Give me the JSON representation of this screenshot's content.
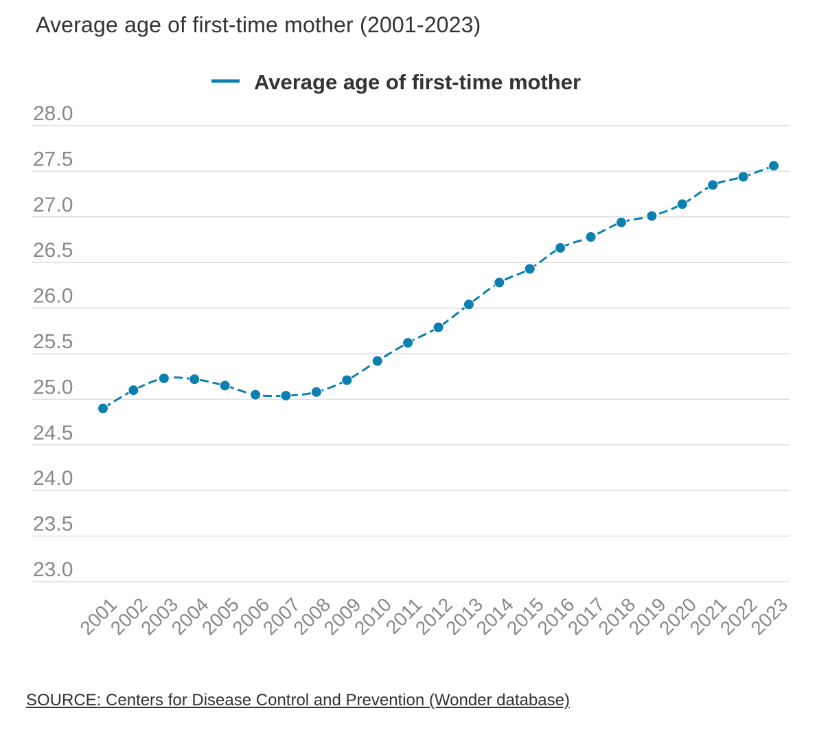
{
  "title": "Average age of first-time mother (2001-2023)",
  "source_text": "SOURCE: Centers for Disease Control and Prevention (Wonder database)",
  "colors": {
    "series": "#0a7fb0",
    "grid": "#dddddd",
    "tick_label": "#888888",
    "title": "#333333",
    "legend_text": "#333333"
  },
  "chart_data": {
    "type": "line",
    "title": "Average age of first-time mother (2001-2023)",
    "xlabel": "",
    "ylabel": "",
    "x": [
      "2001",
      "2002",
      "2003",
      "2004",
      "2005",
      "2006",
      "2007",
      "2008",
      "2009",
      "2010",
      "2011",
      "2012",
      "2013",
      "2014",
      "2015",
      "2016",
      "2017",
      "2018",
      "2019",
      "2020",
      "2021",
      "2022",
      "2023"
    ],
    "series": [
      {
        "name": "Average age of first-time mother",
        "values": [
          24.9,
          25.1,
          25.23,
          25.22,
          25.15,
          25.05,
          25.04,
          25.08,
          25.21,
          25.42,
          25.62,
          25.79,
          26.04,
          26.28,
          26.43,
          26.66,
          26.78,
          26.94,
          27.01,
          27.14,
          27.35,
          27.44,
          27.56
        ]
      }
    ],
    "ylim": [
      23.0,
      28.0
    ],
    "yticks": [
      "28.0",
      "27.5",
      "27.0",
      "26.5",
      "26.0",
      "25.5",
      "25.0",
      "24.5",
      "24.0",
      "23.5",
      "23.0"
    ],
    "grid": true,
    "legend_position": "top-center",
    "smooth": true
  }
}
